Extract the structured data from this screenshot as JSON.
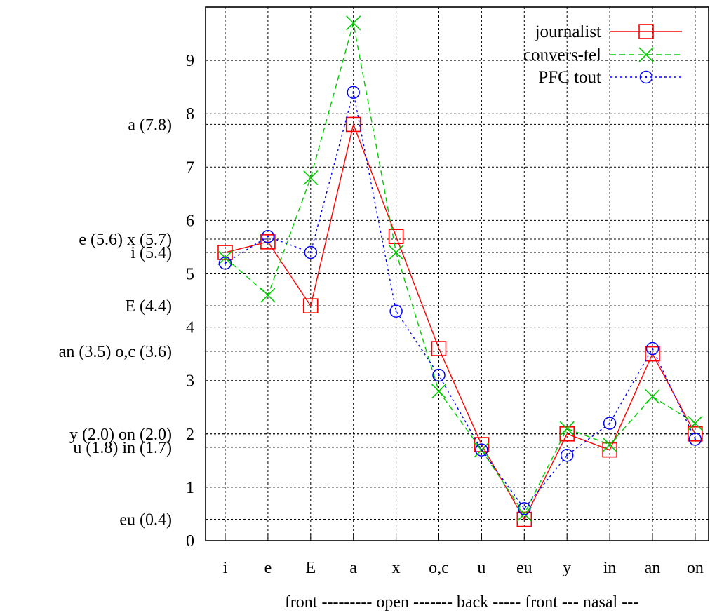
{
  "chart_data": {
    "type": "line",
    "categories": [
      "i",
      "e",
      "E",
      "a",
      "x",
      "o,c",
      "u",
      "eu",
      "y",
      "in",
      "an",
      "on"
    ],
    "category_groups_label": "front --------- open ------- back ----- front --- nasal ---",
    "ylim": [
      0,
      10
    ],
    "yticks": [
      0,
      1,
      2,
      3,
      4,
      5,
      6,
      7,
      8,
      9
    ],
    "grid": true,
    "legend_position": "top-right",
    "series": [
      {
        "name": "journalist",
        "color": "#ff0000",
        "marker": "square",
        "dash": "solid",
        "values": [
          5.4,
          5.6,
          4.4,
          7.8,
          5.7,
          3.6,
          1.8,
          0.4,
          2.0,
          1.7,
          3.5,
          2.0
        ]
      },
      {
        "name": "convers-tel",
        "color": "#00cc00",
        "marker": "x",
        "dash": "dashed",
        "values": [
          5.3,
          4.6,
          6.8,
          9.7,
          5.4,
          2.8,
          1.7,
          0.5,
          2.1,
          1.8,
          2.7,
          2.2
        ]
      },
      {
        "name": "PFC tout",
        "color": "#0000ff",
        "marker": "circle",
        "dash": "dotted",
        "values": [
          5.2,
          5.7,
          5.4,
          8.4,
          4.3,
          3.1,
          1.7,
          0.6,
          1.6,
          2.2,
          3.6,
          1.9
        ]
      }
    ],
    "reference_labels": [
      {
        "text": "a (7.8)",
        "value": 7.8
      },
      {
        "text": "e (5.6)  x (5.7)",
        "value": 5.65
      },
      {
        "text": "i (5.4)",
        "value": 5.4
      },
      {
        "text": "E (4.4)",
        "value": 4.4
      },
      {
        "text": "an (3.5)  o,c (3.6)",
        "value": 3.55
      },
      {
        "text": "y (2.0)  on (2.0)",
        "value": 2.0
      },
      {
        "text": "u (1.8)  in (1.7)",
        "value": 1.75
      },
      {
        "text": "eu (0.4)",
        "value": 0.4
      }
    ]
  }
}
